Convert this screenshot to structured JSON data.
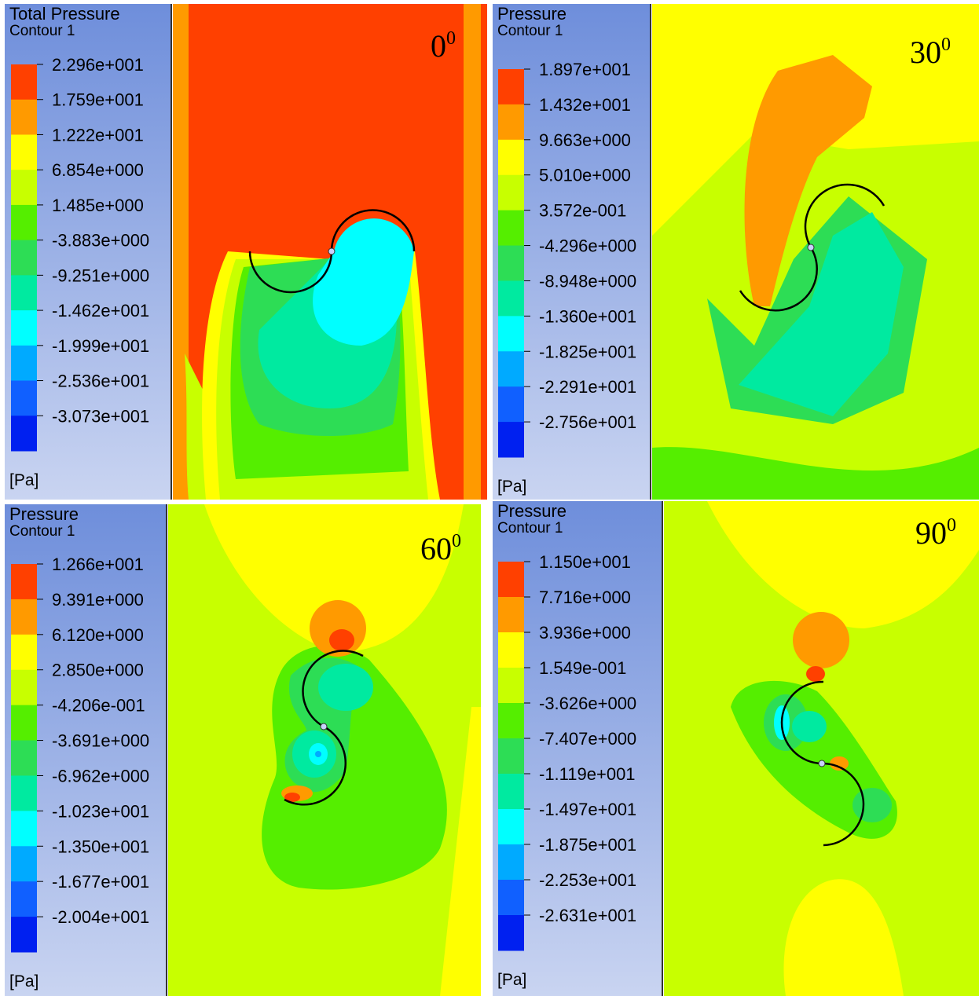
{
  "panels": [
    {
      "title": [
        "Total Pressure",
        "Contour 1"
      ],
      "labels": [
        "2.296e+001",
        "1.759e+001",
        "1.222e+001",
        "6.854e+000",
        "1.485e+000",
        "-3.883e+000",
        "-9.251e+000",
        "-1.462e+001",
        "-1.999e+001",
        "-2.536e+001",
        "-3.073e+001"
      ],
      "unit": "[Pa]",
      "angle": "0",
      "angle_sup": "0"
    },
    {
      "title": [
        "Pressure",
        "Contour 1"
      ],
      "labels": [
        "1.897e+001",
        "1.432e+001",
        "9.663e+000",
        "5.010e+000",
        "3.572e-001",
        "-4.296e+000",
        "-8.948e+000",
        "-1.360e+001",
        "-1.825e+001",
        "-2.291e+001",
        "-2.756e+001"
      ],
      "unit": "[Pa]",
      "angle": "30",
      "angle_sup": "0"
    },
    {
      "title": [
        "Pressure",
        "Contour 1"
      ],
      "labels": [
        "1.266e+001",
        "9.391e+000",
        "6.120e+000",
        "2.850e+000",
        "-4.206e-001",
        "-3.691e+000",
        "-6.962e+000",
        "-1.023e+001",
        "-1.350e+001",
        "-1.677e+001",
        "-2.004e+001"
      ],
      "unit": "[Pa]",
      "angle": "60",
      "angle_sup": "0"
    },
    {
      "title": [
        "Pressure",
        "Contour 1"
      ],
      "labels": [
        "1.150e+001",
        "7.716e+000",
        "3.936e+000",
        "1.549e-001",
        "-3.626e+000",
        "-7.407e+000",
        "-1.119e+001",
        "-1.497e+001",
        "-1.875e+001",
        "-2.253e+001",
        "-2.631e+001"
      ],
      "unit": "[Pa]",
      "angle": "90",
      "angle_sup": "0"
    }
  ]
}
